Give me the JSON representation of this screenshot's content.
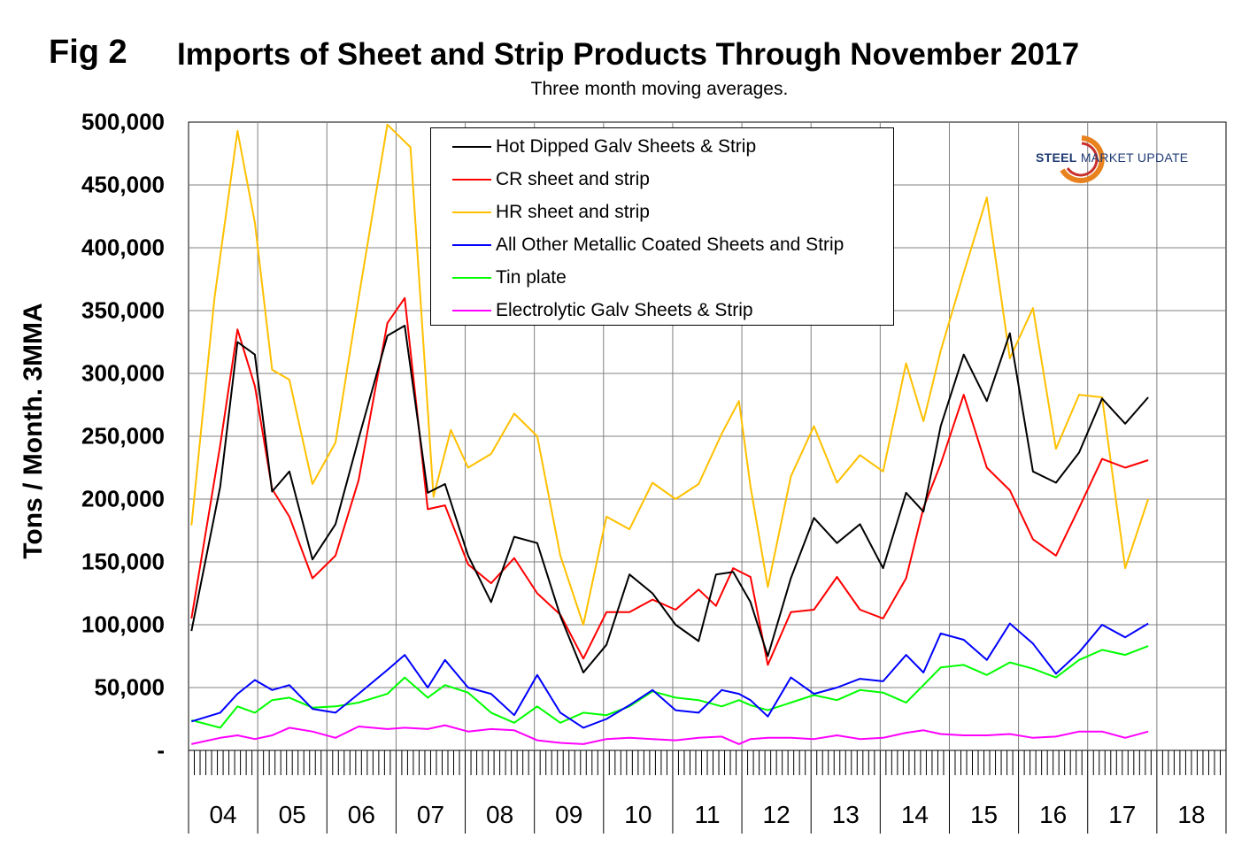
{
  "figure": {
    "fig_label": "Fig 2",
    "title": "Imports of Sheet and Strip Products Through November 2017",
    "subtitle": "Three month moving averages.",
    "ylabel": "Tons / Month. 3MMA",
    "logo_text_bold": "STEEL",
    "logo_text_light": "MARKET UPDATE"
  },
  "chart_data": {
    "type": "line",
    "title": "Imports of Sheet and Strip Products Through November 2017",
    "subtitle": "Three month moving averages.",
    "xlabel": "",
    "ylabel": "Tons / Month. 3MMA",
    "ylim": [
      0,
      500000
    ],
    "y_ticks": [
      {
        "value": 0,
        "label": "-"
      },
      {
        "value": 50000,
        "label": "50,000"
      },
      {
        "value": 100000,
        "label": "100,000"
      },
      {
        "value": 150000,
        "label": "150,000"
      },
      {
        "value": 200000,
        "label": "200,000"
      },
      {
        "value": 250000,
        "label": "250,000"
      },
      {
        "value": 300000,
        "label": "300,000"
      },
      {
        "value": 350000,
        "label": "350,000"
      },
      {
        "value": 400000,
        "label": "400,000"
      },
      {
        "value": 450000,
        "label": "450,000"
      },
      {
        "value": 500000,
        "label": "500,000"
      }
    ],
    "x_range": [
      "2004-01",
      "2018-12"
    ],
    "year_labels": [
      "04",
      "05",
      "06",
      "07",
      "08",
      "09",
      "10",
      "11",
      "12",
      "13",
      "14",
      "15",
      "16",
      "17",
      "18"
    ],
    "grid": true,
    "legend_position": "top-center",
    "series": [
      {
        "name": "Hot Dipped Galv Sheets & Strip",
        "color": "#000000",
        "x": [
          "2004-01",
          "2004-06",
          "2004-09",
          "2004-12",
          "2005-03",
          "2005-06",
          "2005-10",
          "2006-02",
          "2006-06",
          "2006-11",
          "2007-02",
          "2007-06",
          "2007-09",
          "2008-01",
          "2008-05",
          "2008-09",
          "2009-01",
          "2009-05",
          "2009-09",
          "2010-01",
          "2010-05",
          "2010-09",
          "2011-01",
          "2011-05",
          "2011-08",
          "2011-11",
          "2012-02",
          "2012-05",
          "2012-09",
          "2013-01",
          "2013-05",
          "2013-09",
          "2014-01",
          "2014-05",
          "2014-08",
          "2014-11",
          "2015-03",
          "2015-07",
          "2015-11",
          "2016-03",
          "2016-07",
          "2016-11",
          "2017-03",
          "2017-07",
          "2017-11"
        ],
        "values": [
          95000,
          210000,
          325000,
          315000,
          206000,
          222000,
          152000,
          180000,
          248000,
          330000,
          338000,
          205000,
          212000,
          155000,
          118000,
          170000,
          165000,
          107000,
          62000,
          84000,
          140000,
          125000,
          100000,
          87000,
          140000,
          142000,
          118000,
          75000,
          137000,
          185000,
          165000,
          180000,
          145000,
          205000,
          190000,
          258000,
          315000,
          278000,
          332000,
          222000,
          213000,
          237000,
          280000,
          260000,
          281000
        ]
      },
      {
        "name": "CR sheet and strip",
        "color": "#ff0000",
        "x": [
          "2004-01",
          "2004-06",
          "2004-09",
          "2004-12",
          "2005-03",
          "2005-06",
          "2005-10",
          "2006-02",
          "2006-06",
          "2006-11",
          "2007-02",
          "2007-06",
          "2007-09",
          "2008-01",
          "2008-05",
          "2008-09",
          "2009-01",
          "2009-05",
          "2009-09",
          "2010-01",
          "2010-05",
          "2010-09",
          "2011-01",
          "2011-05",
          "2011-08",
          "2011-11",
          "2012-02",
          "2012-05",
          "2012-09",
          "2013-01",
          "2013-05",
          "2013-09",
          "2014-01",
          "2014-05",
          "2014-08",
          "2014-11",
          "2015-03",
          "2015-07",
          "2015-11",
          "2016-03",
          "2016-07",
          "2016-11",
          "2017-03",
          "2017-07",
          "2017-11"
        ],
        "values": [
          105000,
          243000,
          335000,
          290000,
          208000,
          186000,
          137000,
          155000,
          215000,
          340000,
          360000,
          192000,
          195000,
          148000,
          133000,
          153000,
          125000,
          108000,
          73000,
          110000,
          110000,
          120000,
          112000,
          128000,
          115000,
          145000,
          138000,
          68000,
          110000,
          112000,
          138000,
          112000,
          105000,
          137000,
          193000,
          228000,
          283000,
          225000,
          207000,
          168000,
          155000,
          193000,
          232000,
          225000,
          231000
        ]
      },
      {
        "name": "HR sheet and strip",
        "color": "#ffc000",
        "x": [
          "2004-01",
          "2004-05",
          "2004-09",
          "2004-12",
          "2005-03",
          "2005-06",
          "2005-10",
          "2006-02",
          "2006-06",
          "2006-11",
          "2007-03",
          "2007-07",
          "2007-10",
          "2008-01",
          "2008-05",
          "2008-09",
          "2009-01",
          "2009-05",
          "2009-09",
          "2010-01",
          "2010-05",
          "2010-09",
          "2011-01",
          "2011-05",
          "2011-09",
          "2011-12",
          "2012-02",
          "2012-05",
          "2012-09",
          "2013-01",
          "2013-05",
          "2013-09",
          "2014-01",
          "2014-05",
          "2014-08",
          "2014-11",
          "2015-03",
          "2015-07",
          "2015-11",
          "2016-03",
          "2016-07",
          "2016-11",
          "2017-03",
          "2017-07",
          "2017-11"
        ],
        "values": [
          179000,
          360000,
          493000,
          420000,
          303000,
          295000,
          212000,
          245000,
          360000,
          498000,
          480000,
          202000,
          255000,
          225000,
          236000,
          268000,
          250000,
          155000,
          100000,
          186000,
          176000,
          213000,
          200000,
          212000,
          252000,
          278000,
          210000,
          130000,
          218000,
          258000,
          213000,
          235000,
          222000,
          308000,
          262000,
          318000,
          380000,
          440000,
          312000,
          352000,
          240000,
          283000,
          281000,
          145000,
          200000
        ]
      },
      {
        "name": "All Other Metallic Coated Sheets and Strip",
        "color": "#0000ff",
        "x": [
          "2004-01",
          "2004-06",
          "2004-09",
          "2004-12",
          "2005-03",
          "2005-06",
          "2005-10",
          "2006-02",
          "2006-06",
          "2006-11",
          "2007-02",
          "2007-06",
          "2007-09",
          "2008-01",
          "2008-05",
          "2008-09",
          "2009-01",
          "2009-05",
          "2009-09",
          "2010-01",
          "2010-05",
          "2010-09",
          "2011-01",
          "2011-05",
          "2011-09",
          "2011-12",
          "2012-02",
          "2012-05",
          "2012-09",
          "2013-01",
          "2013-05",
          "2013-09",
          "2014-01",
          "2014-05",
          "2014-08",
          "2014-11",
          "2015-03",
          "2015-07",
          "2015-11",
          "2016-03",
          "2016-07",
          "2016-11",
          "2017-03",
          "2017-07",
          "2017-11"
        ],
        "values": [
          23000,
          30000,
          45000,
          56000,
          48000,
          52000,
          33000,
          30000,
          45000,
          64000,
          76000,
          50000,
          72000,
          50000,
          45000,
          28000,
          60000,
          30000,
          18000,
          25000,
          36000,
          48000,
          32000,
          30000,
          48000,
          45000,
          40000,
          27000,
          58000,
          45000,
          50000,
          57000,
          55000,
          76000,
          62000,
          93000,
          88000,
          72000,
          101000,
          85000,
          61000,
          78000,
          100000,
          90000,
          101000
        ]
      },
      {
        "name": "Tin plate",
        "color": "#00ff00",
        "x": [
          "2004-01",
          "2004-06",
          "2004-09",
          "2004-12",
          "2005-03",
          "2005-06",
          "2005-10",
          "2006-02",
          "2006-06",
          "2006-11",
          "2007-02",
          "2007-06",
          "2007-09",
          "2008-01",
          "2008-05",
          "2008-09",
          "2009-01",
          "2009-05",
          "2009-09",
          "2010-01",
          "2010-05",
          "2010-09",
          "2011-01",
          "2011-05",
          "2011-09",
          "2011-12",
          "2012-02",
          "2012-05",
          "2012-09",
          "2013-01",
          "2013-05",
          "2013-09",
          "2014-01",
          "2014-05",
          "2014-08",
          "2014-11",
          "2015-03",
          "2015-07",
          "2015-11",
          "2016-03",
          "2016-07",
          "2016-11",
          "2017-03",
          "2017-07",
          "2017-11"
        ],
        "values": [
          24000,
          18000,
          35000,
          30000,
          40000,
          42000,
          34000,
          35000,
          38000,
          45000,
          58000,
          42000,
          52000,
          46000,
          30000,
          22000,
          35000,
          22000,
          30000,
          28000,
          35000,
          47000,
          42000,
          40000,
          35000,
          40000,
          36000,
          32000,
          38000,
          44000,
          40000,
          48000,
          46000,
          38000,
          52000,
          66000,
          68000,
          60000,
          70000,
          65000,
          58000,
          72000,
          80000,
          76000,
          83000
        ]
      },
      {
        "name": "Electrolytic Galv Sheets & Strip",
        "color": "#ff00ff",
        "x": [
          "2004-01",
          "2004-06",
          "2004-09",
          "2004-12",
          "2005-03",
          "2005-06",
          "2005-10",
          "2006-02",
          "2006-06",
          "2006-11",
          "2007-02",
          "2007-06",
          "2007-09",
          "2008-01",
          "2008-05",
          "2008-09",
          "2009-01",
          "2009-05",
          "2009-09",
          "2010-01",
          "2010-05",
          "2010-09",
          "2011-01",
          "2011-05",
          "2011-09",
          "2011-12",
          "2012-02",
          "2012-05",
          "2012-09",
          "2013-01",
          "2013-05",
          "2013-09",
          "2014-01",
          "2014-05",
          "2014-08",
          "2014-11",
          "2015-03",
          "2015-07",
          "2015-11",
          "2016-03",
          "2016-07",
          "2016-11",
          "2017-03",
          "2017-07",
          "2017-11"
        ],
        "values": [
          5000,
          10000,
          12000,
          9000,
          12000,
          18000,
          15000,
          10000,
          19000,
          17000,
          18000,
          17000,
          20000,
          15000,
          17000,
          16000,
          8000,
          6000,
          5000,
          9000,
          10000,
          9000,
          8000,
          10000,
          11000,
          5000,
          9000,
          10000,
          10000,
          9000,
          12000,
          9000,
          10000,
          14000,
          16000,
          13000,
          12000,
          12000,
          13000,
          10000,
          11000,
          15000,
          15000,
          10000,
          15000
        ]
      }
    ]
  }
}
